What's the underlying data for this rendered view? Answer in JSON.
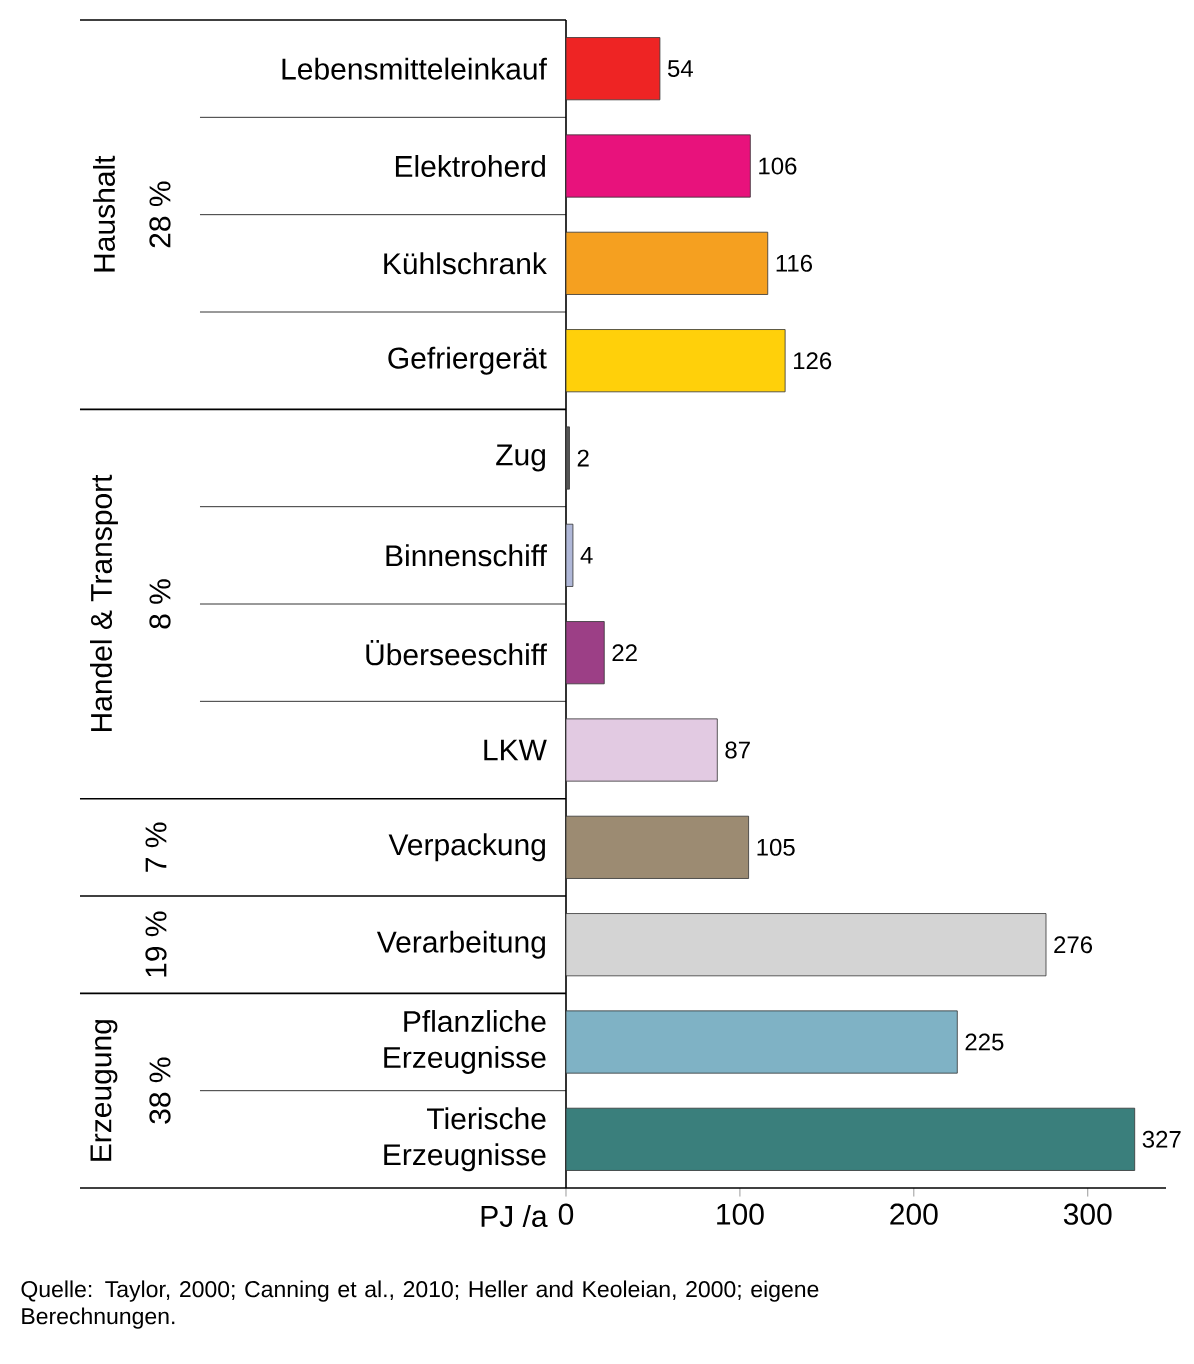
{
  "chart_data": {
    "type": "bar",
    "orientation": "horizontal",
    "xlabel": "PJ /a",
    "categories": [
      "Lebensmitteleinkauf",
      "Elektroherd",
      "Kühlschrank",
      "Gefriergerät",
      "Zug",
      "Binnenschiff",
      "Überseeschiff",
      "LKW",
      "Verpackung",
      "Verarbeitung",
      "Pflanzliche Erzeugnisse",
      "Tierische Erzeugnisse"
    ],
    "values": [
      54,
      106,
      116,
      126,
      2,
      4,
      22,
      87,
      105,
      276,
      225,
      327
    ],
    "colors": [
      "#ee2424",
      "#e8127c",
      "#f5a020",
      "#ffd00a",
      "#555555",
      "#b0b8d8",
      "#9c3f86",
      "#e2cae2",
      "#9c8b72",
      "#d4d4d4",
      "#7fb2c5",
      "#3a7f7c"
    ],
    "xlim": [
      0,
      345
    ],
    "xticks": [
      0,
      100,
      200,
      300
    ],
    "data_labels": true,
    "annotations": [
      "Haushalt",
      "28 %",
      "Handel & Transport",
      "8 %",
      "7 %",
      "19 %",
      "Erzeugung",
      "38 %",
      "Quelle: Taylor, 2000; Canning et al., 2010; Heller and Keoleian, 2000; eigene Berechnungen."
    ]
  }
}
